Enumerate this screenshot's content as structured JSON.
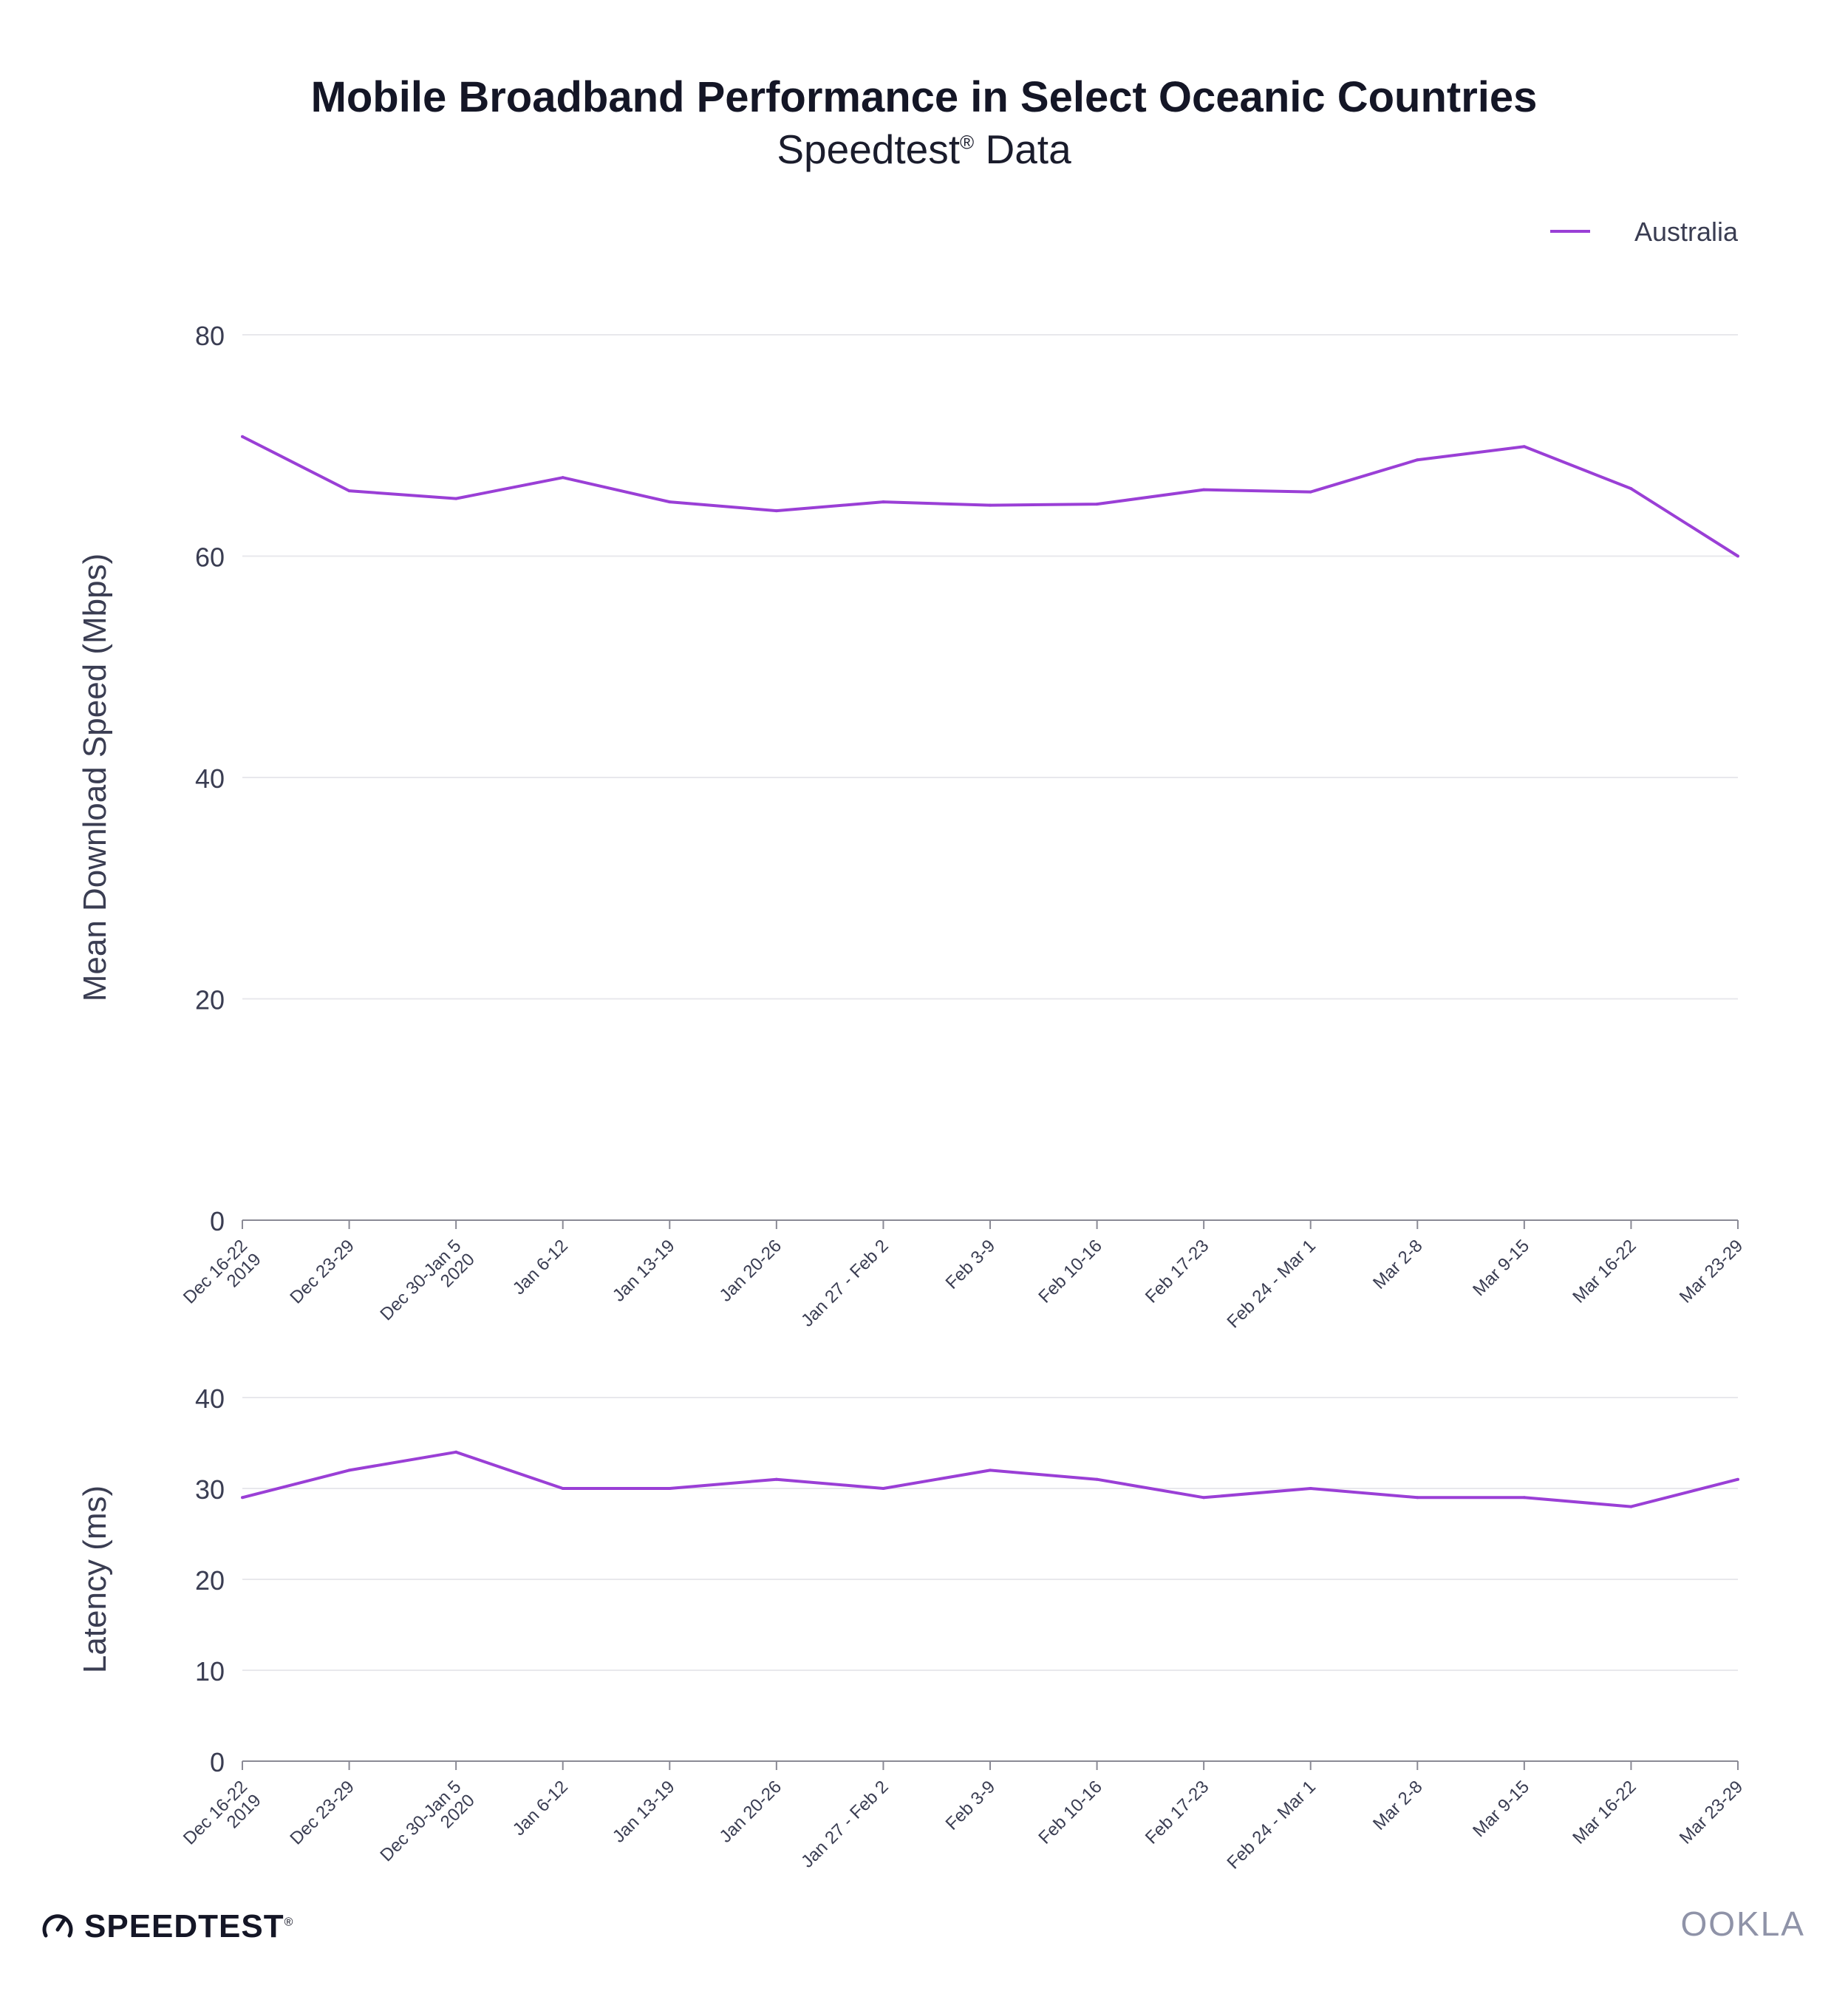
{
  "title": "Mobile Broadband Performance in Select Oceanic Countries",
  "subtitle": "Speedtest",
  "subtitle_mark": "®",
  "subtitle_suffix": " Data",
  "footer": {
    "left_logo": "SPEEDTEST",
    "left_logo_mark": "®",
    "right_logo": "OOKLA"
  },
  "colors": {
    "series": "#9a3fd6",
    "grid": "#e8e8ec",
    "axis": "#8a8a95",
    "text": "#3a3d52"
  },
  "chart_data": [
    {
      "type": "line",
      "categories": [
        "Dec 16-22\n2019",
        "Dec 23-29",
        "Dec 30-Jan 5\n2020",
        "Jan 6-12",
        "Jan 13-19",
        "Jan 20-26",
        "Jan 27 - Feb 2",
        "Feb 3-9",
        "Feb 10-16",
        "Feb 17-23",
        "Feb 24 - Mar 1",
        "Mar 2-8",
        "Mar 9-15",
        "Mar 16-22",
        "Mar 23-29"
      ],
      "series": [
        {
          "name": "Australia",
          "values": [
            70.8,
            65.9,
            65.2,
            67.1,
            64.9,
            64.1,
            64.9,
            64.6,
            64.7,
            66.0,
            65.8,
            68.7,
            69.9,
            66.1,
            60.0
          ]
        }
      ],
      "ylabel": "Mean Download Speed (Mbps)",
      "xlabel": "",
      "ylim": [
        0,
        80
      ],
      "yticks": [
        0,
        20,
        40,
        60,
        80
      ],
      "grid": true,
      "legend": "top-right"
    },
    {
      "type": "line",
      "categories": [
        "Dec 16-22\n2019",
        "Dec 23-29",
        "Dec 30-Jan 5\n2020",
        "Jan 6-12",
        "Jan 13-19",
        "Jan 20-26",
        "Jan 27 - Feb 2",
        "Feb 3-9",
        "Feb 10-16",
        "Feb 17-23",
        "Feb 24 - Mar 1",
        "Mar 2-8",
        "Mar 9-15",
        "Mar 16-22",
        "Mar 23-29"
      ],
      "series": [
        {
          "name": "Australia",
          "values": [
            29,
            32,
            34,
            30,
            30,
            31,
            30,
            32,
            31,
            29,
            30,
            29,
            29,
            28,
            31
          ]
        }
      ],
      "ylabel": "Latency (ms)",
      "xlabel": "",
      "ylim": [
        0,
        40
      ],
      "yticks": [
        0,
        10,
        20,
        30,
        40
      ],
      "grid": true,
      "legend": "none"
    }
  ]
}
